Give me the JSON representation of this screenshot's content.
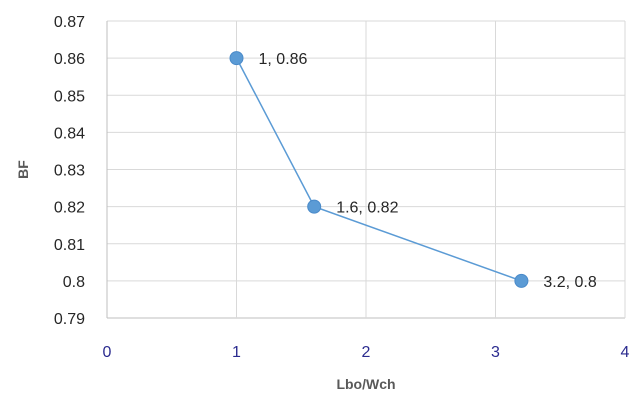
{
  "chart_data": {
    "type": "scatter",
    "title": "",
    "xlabel": "Lbo/Wch",
    "ylabel": "BF",
    "xlim": [
      0,
      4
    ],
    "ylim": [
      0.79,
      0.87
    ],
    "x_ticks": [
      "0",
      "1",
      "2",
      "3",
      "4"
    ],
    "y_ticks": [
      "0.87",
      "0.86",
      "0.85",
      "0.84",
      "0.83",
      "0.82",
      "0.81",
      "0.8",
      "0.79"
    ],
    "grid": true,
    "legend": "none",
    "series": [
      {
        "x": [
          1,
          1.6,
          3.2
        ],
        "y": [
          0.86,
          0.82,
          0.8
        ],
        "labels": [
          "1, 0.86",
          "1.6, 0.82",
          "3.2, 0.8"
        ],
        "color": "#5b9bd5",
        "markers": true,
        "lines": true
      }
    ]
  }
}
